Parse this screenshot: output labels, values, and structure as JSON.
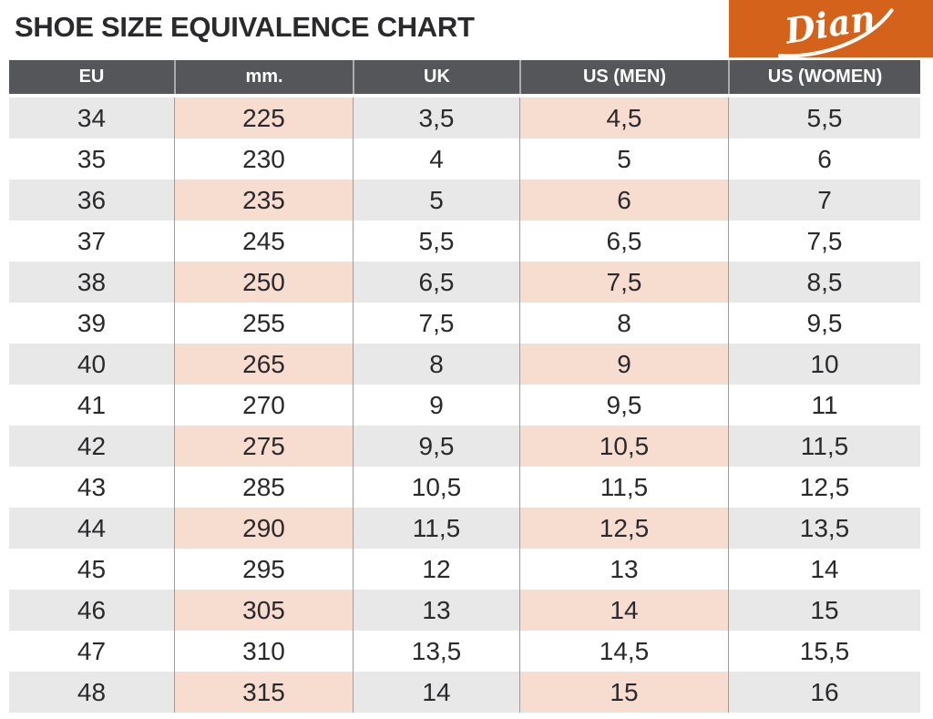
{
  "page_title": "SHOE SIZE EQUIVALENCE CHART",
  "brand": {
    "name": "Dian"
  },
  "colors": {
    "accent": "#D5621B",
    "header_bg": "#55565A",
    "stripe_gray": "#E9E8E8",
    "stripe_pink": "#F7DCD0",
    "text_dark": "#2A2A2D",
    "divider": "#9C9C9C"
  },
  "chart_data": {
    "type": "table",
    "title": "SHOE SIZE EQUIVALENCE CHART",
    "columns": [
      "EU",
      "mm.",
      "UK",
      "US (MEN)",
      "US (WOMEN)"
    ],
    "highlighted_columns": [
      "mm.",
      "US (MEN)"
    ],
    "row_striping": "alternate-starting-first-row",
    "rows": [
      [
        "34",
        "225",
        "3,5",
        "4,5",
        "5,5"
      ],
      [
        "35",
        "230",
        "4",
        "5",
        "6"
      ],
      [
        "36",
        "235",
        "5",
        "6",
        "7"
      ],
      [
        "37",
        "245",
        "5,5",
        "6,5",
        "7,5"
      ],
      [
        "38",
        "250",
        "6,5",
        "7,5",
        "8,5"
      ],
      [
        "39",
        "255",
        "7,5",
        "8",
        "9,5"
      ],
      [
        "40",
        "265",
        "8",
        "9",
        "10"
      ],
      [
        "41",
        "270",
        "9",
        "9,5",
        "11"
      ],
      [
        "42",
        "275",
        "9,5",
        "10,5",
        "11,5"
      ],
      [
        "43",
        "285",
        "10,5",
        "11,5",
        "12,5"
      ],
      [
        "44",
        "290",
        "11,5",
        "12,5",
        "13,5"
      ],
      [
        "45",
        "295",
        "12",
        "13",
        "14"
      ],
      [
        "46",
        "305",
        "13",
        "14",
        "15"
      ],
      [
        "47",
        "310",
        "13,5",
        "14,5",
        "15,5"
      ],
      [
        "48",
        "315",
        "14",
        "15",
        "16"
      ]
    ]
  }
}
